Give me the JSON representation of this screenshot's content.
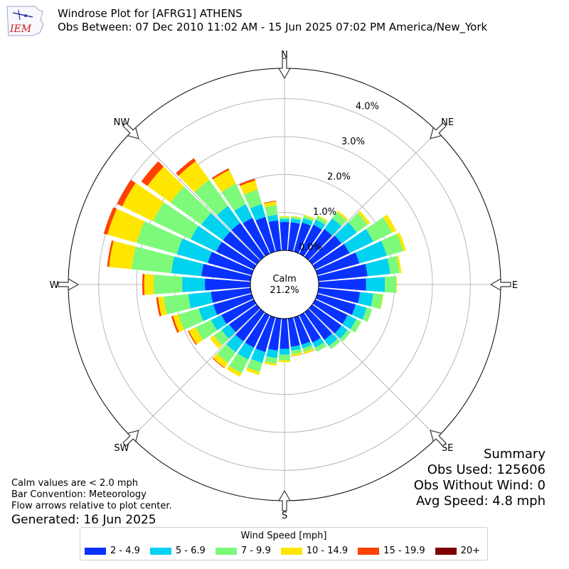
{
  "header": {
    "logo_text": "IEM",
    "title_line1": "Windrose Plot for [AFRG1] ATHENS",
    "title_line2": "Obs Between: 07 Dec 2010 11:02 AM - 15 Jun 2025 07:02 PM America/New_York"
  },
  "chart_data": {
    "type": "windrose",
    "calm": {
      "label": "Calm",
      "value": "21.2%"
    },
    "radial_ticks": [
      "0.0%",
      "1.0%",
      "2.0%",
      "3.0%",
      "4.0%"
    ],
    "radial_max": 4.8,
    "compass_labels": [
      "N",
      "NE",
      "E",
      "SE",
      "S",
      "SW",
      "W",
      "NW"
    ],
    "bins": [
      {
        "label": "2 - 4.9",
        "color": "#0a32ff"
      },
      {
        "label": "5 - 6.9",
        "color": "#00d2f0"
      },
      {
        "label": "7 - 9.9",
        "color": "#7dfa7a"
      },
      {
        "label": "10 - 14.9",
        "color": "#ffe600"
      },
      {
        "label": "15 - 19.9",
        "color": "#ff4200"
      },
      {
        "label": "20+",
        "color": "#800000"
      }
    ],
    "directions_deg": [
      0,
      10,
      20,
      30,
      40,
      50,
      60,
      70,
      80,
      90,
      100,
      110,
      120,
      130,
      140,
      150,
      160,
      170,
      180,
      190,
      200,
      210,
      220,
      230,
      240,
      250,
      260,
      270,
      280,
      290,
      300,
      310,
      320,
      330,
      340,
      350
    ],
    "values": [
      [
        0.75,
        0.08,
        0.05,
        0.02,
        0,
        0
      ],
      [
        0.75,
        0.1,
        0.05,
        0.02,
        0,
        0
      ],
      [
        0.8,
        0.12,
        0.06,
        0.03,
        0,
        0
      ],
      [
        0.85,
        0.15,
        0.1,
        0.03,
        0,
        0
      ],
      [
        0.9,
        0.35,
        0.2,
        0.05,
        0,
        0
      ],
      [
        0.95,
        0.5,
        0.35,
        0.08,
        0,
        0
      ],
      [
        1.0,
        0.7,
        0.55,
        0.12,
        0,
        0
      ],
      [
        1.15,
        0.75,
        0.45,
        0.08,
        0,
        0
      ],
      [
        1.3,
        0.6,
        0.25,
        0.05,
        0,
        0
      ],
      [
        1.25,
        0.5,
        0.3,
        0.02,
        0,
        0
      ],
      [
        1.1,
        0.35,
        0.25,
        0.02,
        0,
        0
      ],
      [
        1.05,
        0.3,
        0.15,
        0,
        0,
        0
      ],
      [
        0.95,
        0.25,
        0.15,
        0,
        0,
        0
      ],
      [
        0.95,
        0.2,
        0.1,
        0,
        0,
        0
      ],
      [
        0.9,
        0.2,
        0.1,
        0,
        0,
        0
      ],
      [
        0.8,
        0.15,
        0.12,
        0,
        0,
        0
      ],
      [
        0.75,
        0.1,
        0.1,
        0.05,
        0,
        0
      ],
      [
        0.75,
        0.1,
        0.1,
        0.05,
        0,
        0
      ],
      [
        0.8,
        0.15,
        0.15,
        0.05,
        0,
        0
      ],
      [
        0.85,
        0.2,
        0.15,
        0.05,
        0,
        0
      ],
      [
        0.95,
        0.3,
        0.25,
        0.08,
        0,
        0
      ],
      [
        0.95,
        0.35,
        0.4,
        0.1,
        0,
        0
      ],
      [
        0.95,
        0.35,
        0.35,
        0.15,
        0.02,
        0
      ],
      [
        0.9,
        0.25,
        0.25,
        0.12,
        0,
        0
      ],
      [
        0.95,
        0.3,
        0.45,
        0.2,
        0.03,
        0
      ],
      [
        1.05,
        0.4,
        0.55,
        0.15,
        0.05,
        0
      ],
      [
        1.05,
        0.6,
        0.65,
        0.15,
        0.05,
        0
      ],
      [
        1.2,
        0.6,
        0.75,
        0.25,
        0.05,
        0
      ],
      [
        1.3,
        0.8,
        1.05,
        0.6,
        0.05,
        0
      ],
      [
        1.2,
        0.85,
        1.1,
        0.8,
        0.1,
        0
      ],
      [
        1.1,
        0.75,
        1.1,
        0.9,
        0.15,
        0
      ],
      [
        1.1,
        0.7,
        1.0,
        0.75,
        0.2,
        0
      ],
      [
        1.1,
        0.55,
        0.85,
        0.6,
        0.1,
        0
      ],
      [
        1.05,
        0.4,
        0.6,
        0.4,
        0.05,
        0
      ],
      [
        0.95,
        0.35,
        0.4,
        0.25,
        0.05,
        0
      ],
      [
        0.8,
        0.15,
        0.25,
        0.1,
        0.02,
        0
      ]
    ],
    "grid": true
  },
  "notes": {
    "line1": "Calm values are < 2.0 mph",
    "line2": "Bar Convention: Meteorology",
    "line3": "Flow arrows relative to plot center.",
    "generated": "Generated: 16 Jun 2025"
  },
  "summary": {
    "title": "Summary",
    "obs_used": "Obs Used: 125606",
    "obs_without_wind": "Obs Without Wind: 0",
    "avg_speed": "Avg Speed: 4.8 mph"
  },
  "legend": {
    "title": "Wind Speed [mph]"
  }
}
